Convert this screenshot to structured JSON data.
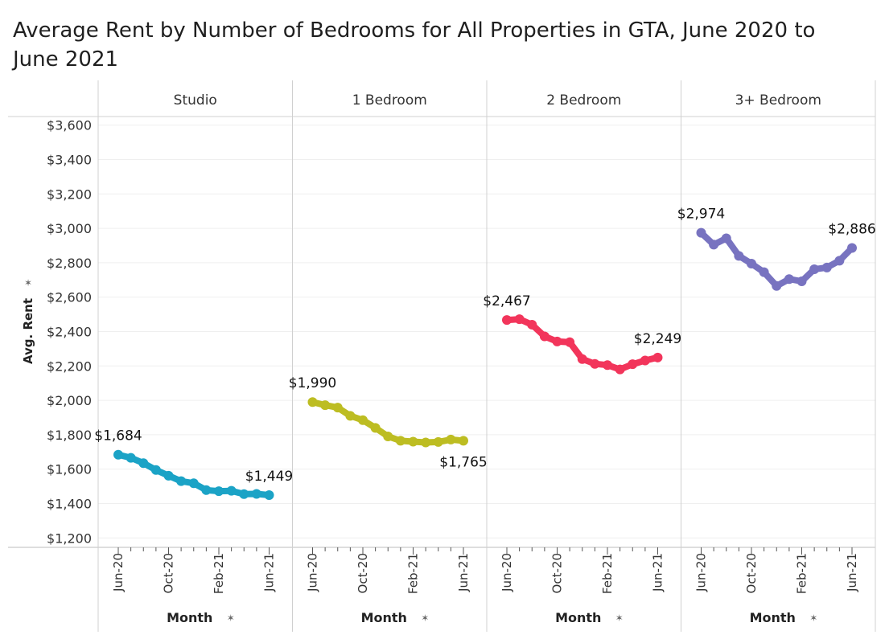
{
  "chart_data": {
    "type": "line",
    "title": "Average Rent by Number of Bedrooms for All Properties in GTA, June 2020 to June 2021",
    "ylabel": "Avg. Rent",
    "xlabel": "Month",
    "ylim": [
      1150,
      3650
    ],
    "yticks": [
      "$1,200",
      "$1,400",
      "$1,600",
      "$1,800",
      "$2,000",
      "$2,200",
      "$2,400",
      "$2,600",
      "$2,800",
      "$3,000",
      "$3,200",
      "$3,400",
      "$3,600"
    ],
    "ytick_values": [
      1200,
      1400,
      1600,
      1800,
      2000,
      2200,
      2400,
      2600,
      2800,
      3000,
      3200,
      3400,
      3600
    ],
    "xtick_labels": [
      "Jun-20",
      "Oct-20",
      "Feb-21",
      "Jun-21"
    ],
    "x": [
      "Jun-20",
      "Jul-20",
      "Aug-20",
      "Sep-20",
      "Oct-20",
      "Nov-20",
      "Dec-20",
      "Jan-21",
      "Feb-21",
      "Mar-21",
      "Apr-21",
      "May-21",
      "Jun-21"
    ],
    "grid": true,
    "series": [
      {
        "name": "Studio",
        "color": "#1ba3c6",
        "values": [
          1684,
          1666,
          1635,
          1595,
          1562,
          1530,
          1518,
          1478,
          1472,
          1474,
          1455,
          1456,
          1449
        ],
        "labels": [
          {
            "index": 0,
            "text": "$1,684",
            "pos": "above"
          },
          {
            "index": 12,
            "text": "$1,449",
            "pos": "above"
          }
        ]
      },
      {
        "name": "1 Bedroom",
        "color": "#bdbd22",
        "values": [
          1990,
          1972,
          1958,
          1910,
          1885,
          1840,
          1790,
          1765,
          1760,
          1755,
          1758,
          1772,
          1765
        ],
        "labels": [
          {
            "index": 0,
            "text": "$1,990",
            "pos": "above"
          },
          {
            "index": 12,
            "text": "$1,765",
            "pos": "below"
          }
        ]
      },
      {
        "name": "2 Bedroom",
        "color": "#f2355b",
        "values": [
          2467,
          2472,
          2440,
          2372,
          2342,
          2338,
          2240,
          2212,
          2205,
          2180,
          2210,
          2232,
          2249
        ],
        "labels": [
          {
            "index": 0,
            "text": "$2,467",
            "pos": "above"
          },
          {
            "index": 12,
            "text": "$2,249",
            "pos": "above"
          }
        ]
      },
      {
        "name": "3+ Bedroom",
        "color": "#7873c0",
        "values": [
          2974,
          2905,
          2942,
          2840,
          2795,
          2745,
          2665,
          2705,
          2692,
          2762,
          2772,
          2812,
          2886
        ],
        "labels": [
          {
            "index": 0,
            "text": "$2,974",
            "pos": "above"
          },
          {
            "index": 12,
            "text": "$2,886",
            "pos": "above"
          }
        ]
      }
    ]
  }
}
